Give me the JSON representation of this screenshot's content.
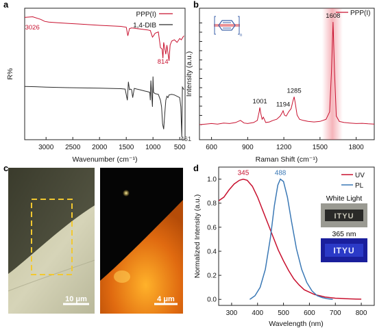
{
  "figure": {
    "panel_letters": [
      "a",
      "b",
      "c",
      "d"
    ]
  },
  "chart_data": [
    {
      "panel": "a",
      "type": "line",
      "xlabel": "Wavenumber (cm⁻¹)",
      "ylabel": "R%",
      "xlim": [
        3400,
        400
      ],
      "x_reversed": true,
      "xticks": [
        3000,
        2500,
        2000,
        1500,
        1000,
        500
      ],
      "legend_position": "top-right",
      "series": [
        {
          "name": "PPP(I)",
          "color": "#c8102e",
          "x": [
            3400,
            3250,
            3100,
            3026,
            2950,
            2800,
            2600,
            2400,
            2200,
            2000,
            1800,
            1600,
            1500,
            1470,
            1440,
            1400,
            1300,
            1200,
            1100,
            1050,
            1010,
            990,
            960,
            900,
            860,
            830,
            814,
            800,
            760,
            740,
            700,
            680,
            650,
            600,
            550,
            500,
            470,
            440,
            420
          ],
          "y": [
            0.93,
            0.935,
            0.915,
            0.9,
            0.895,
            0.89,
            0.885,
            0.88,
            0.875,
            0.87,
            0.866,
            0.862,
            0.855,
            0.79,
            0.845,
            0.85,
            0.845,
            0.84,
            0.835,
            0.83,
            0.78,
            0.79,
            0.81,
            0.82,
            0.7,
            0.69,
            0.62,
            0.74,
            0.65,
            0.72,
            0.6,
            0.72,
            0.75,
            0.76,
            0.74,
            0.77,
            0.76,
            0.78,
            0.79
          ]
        },
        {
          "name": "1,4-DIB",
          "color": "#2b2b2b",
          "x": [
            3400,
            3200,
            3000,
            2800,
            2600,
            2400,
            2200,
            2000,
            1800,
            1600,
            1520,
            1480,
            1460,
            1440,
            1420,
            1400,
            1380,
            1350,
            1300,
            1250,
            1200,
            1150,
            1100,
            1060,
            1050,
            1040,
            1010,
            1000,
            990,
            960,
            900,
            860,
            840,
            820,
            800,
            780,
            760,
            740,
            720,
            700,
            650,
            600,
            550,
            500,
            480,
            461,
            450,
            420
          ],
          "y": [
            0.405,
            0.403,
            0.4,
            0.398,
            0.396,
            0.395,
            0.393,
            0.392,
            0.39,
            0.388,
            0.385,
            0.3,
            0.44,
            0.38,
            0.385,
            0.38,
            0.32,
            0.39,
            0.385,
            0.38,
            0.375,
            0.37,
            0.365,
            0.36,
            0.3,
            0.45,
            0.25,
            0.48,
            0.36,
            0.35,
            0.345,
            0.3,
            0.25,
            0.12,
            0.08,
            0.2,
            0.3,
            0.33,
            0.32,
            0.34,
            0.345,
            0.34,
            0.33,
            0.32,
            0.25,
            0.02,
            0.4,
            0.38
          ]
        }
      ],
      "annotations": [
        {
          "text": "3026",
          "x": 3026,
          "series": "PPP(I)"
        },
        {
          "text": "814",
          "x": 814,
          "series": "PPP(I)"
        },
        {
          "text": "461",
          "x": 461,
          "series": "1,4-DIB"
        }
      ]
    },
    {
      "panel": "b",
      "type": "line",
      "xlabel": "Raman Shift (cm⁻¹)",
      "ylabel": "Intensity (a.u.)",
      "xlim": [
        500,
        1950
      ],
      "xticks": [
        600,
        900,
        1200,
        1500,
        1800
      ],
      "legend_position": "top-right",
      "inset": "poly(p-phenylene) repeat-unit structure with subscript n",
      "series": [
        {
          "name": "PPP(I)",
          "color": "#c8102e",
          "x": [
            500,
            550,
            600,
            650,
            700,
            750,
            800,
            840,
            870,
            900,
            950,
            980,
            995,
            1001,
            1008,
            1020,
            1030,
            1050,
            1080,
            1110,
            1140,
            1170,
            1185,
            1194,
            1205,
            1220,
            1240,
            1260,
            1275,
            1285,
            1295,
            1310,
            1330,
            1360,
            1400,
            1450,
            1500,
            1550,
            1580,
            1595,
            1608,
            1620,
            1635,
            1660,
            1700,
            1750,
            1800,
            1850,
            1900,
            1950
          ],
          "y": [
            0.0,
            0.005,
            0.01,
            0.005,
            0.015,
            0.01,
            0.02,
            0.04,
            0.015,
            0.01,
            0.02,
            0.04,
            0.12,
            0.16,
            0.11,
            0.05,
            0.07,
            0.02,
            0.025,
            0.04,
            0.05,
            0.08,
            0.11,
            0.13,
            0.09,
            0.08,
            0.12,
            0.15,
            0.22,
            0.26,
            0.2,
            0.09,
            0.05,
            0.04,
            0.03,
            0.025,
            0.03,
            0.05,
            0.12,
            0.5,
            0.96,
            0.5,
            0.08,
            0.03,
            0.02,
            0.015,
            0.01,
            0.012,
            0.008,
            0.005
          ]
        }
      ],
      "annotations": [
        {
          "text": "1001",
          "x": 1001,
          "y": 0.16
        },
        {
          "text": "1194",
          "x": 1194,
          "y": 0.13
        },
        {
          "text": "1285",
          "x": 1285,
          "y": 0.26
        },
        {
          "text": "1608",
          "x": 1608,
          "y": 0.96
        }
      ]
    },
    {
      "panel": "d",
      "type": "line",
      "xlabel": "Wavelength (nm)",
      "ylabel": "Normalized Intensity (a.u.)",
      "xlim": [
        250,
        850
      ],
      "ylim": [
        -0.05,
        1.1
      ],
      "xticks": [
        300,
        400,
        500,
        600,
        700,
        800
      ],
      "yticks": [
        0.0,
        0.2,
        0.4,
        0.6,
        0.8,
        1.0
      ],
      "legend_position": "top-right",
      "series": [
        {
          "name": "UV",
          "color": "#c8102e",
          "x": [
            250,
            270,
            290,
            310,
            330,
            345,
            360,
            380,
            400,
            420,
            440,
            460,
            480,
            500,
            520,
            540,
            560,
            580,
            600,
            620,
            640,
            660,
            680,
            700,
            720,
            740,
            760,
            780,
            800
          ],
          "y": [
            0.82,
            0.85,
            0.91,
            0.96,
            0.99,
            1.0,
            0.99,
            0.94,
            0.85,
            0.74,
            0.63,
            0.52,
            0.41,
            0.32,
            0.24,
            0.17,
            0.12,
            0.08,
            0.06,
            0.04,
            0.03,
            0.02,
            0.015,
            0.01,
            0.008,
            0.006,
            0.004,
            0.003,
            0.002
          ]
        },
        {
          "name": "PL",
          "color": "#3a78b5",
          "x": [
            370,
            390,
            410,
            430,
            450,
            465,
            478,
            488,
            500,
            515,
            530,
            550,
            570,
            590,
            610,
            630,
            650,
            670,
            690
          ],
          "y": [
            0.0,
            0.03,
            0.1,
            0.25,
            0.52,
            0.78,
            0.95,
            1.0,
            0.98,
            0.85,
            0.66,
            0.42,
            0.25,
            0.14,
            0.07,
            0.03,
            0.015,
            0.005,
            0.0
          ]
        }
      ],
      "annotations": [
        {
          "text": "345",
          "x": 345,
          "y": 1.0,
          "series": "UV"
        },
        {
          "text": "488",
          "x": 488,
          "y": 1.0,
          "series": "PL"
        }
      ],
      "insets": {
        "white_light_label": "White Light",
        "uv_label": "365 nm"
      }
    }
  ],
  "images": {
    "optical_scalebar": "10 μm",
    "fluorescence_scalebar": "4 μm"
  }
}
